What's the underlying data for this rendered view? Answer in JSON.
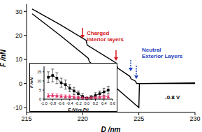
{
  "chart_data": [
    {
      "type": "line",
      "x_label": "D /nm",
      "y_label": "F /nN",
      "xlim": [
        215,
        230
      ],
      "xticks": [
        215,
        220,
        225,
        230
      ],
      "ylim": [
        -12,
        33
      ],
      "yticks": [
        -10,
        0,
        10,
        20,
        30
      ],
      "series": [
        {
          "color": "#000000",
          "x": [
            215.5,
            218,
            220.3,
            220.4,
            223,
            223.1,
            224.2,
            224.3,
            224.7,
            224.8,
            230
          ],
          "values": [
            31,
            24.5,
            18,
            16,
            8.5,
            6.5,
            3,
            2,
            1,
            0,
            0
          ]
        },
        {
          "color": "#000000",
          "x": [
            215.5,
            218,
            220.5,
            220.6,
            222.8,
            222.9,
            225,
            225.05,
            230
          ],
          "values": [
            29,
            20,
            10.5,
            9,
            1,
            -1.5,
            -10,
            0,
            0.3
          ]
        }
      ],
      "annotations": [
        {
          "text": "Charged",
          "color": "#d7191c"
        },
        {
          "text": "Interior layers",
          "color": "#d7191c"
        },
        {
          "text": "Neutral",
          "color": "#1f3fbf"
        },
        {
          "text": "Exterior Layers",
          "color": "#1f3fbf"
        },
        {
          "text": "-0.8 V",
          "color": "#000000"
        }
      ]
    },
    {
      "type": "line",
      "x_label": "E /V(vs.Pt)",
      "y_label": "F /nN",
      "xlim": [
        -1,
        0.6
      ],
      "xticks": [
        {
          "value": -1,
          "label": "-1.0"
        },
        {
          "value": -0.8,
          "label": "-0.8"
        },
        {
          "value": -0.6,
          "label": "-0.6"
        },
        {
          "value": -0.4,
          "label": "-0.4"
        },
        {
          "value": -0.2,
          "label": "-0.2"
        },
        {
          "value": 0,
          "label": "0.0"
        },
        {
          "value": 0.2,
          "label": "0.2"
        },
        {
          "value": 0.4,
          "label": "0.4"
        },
        {
          "value": 0.6,
          "label": "0.6"
        }
      ],
      "ylim": [
        0,
        18
      ],
      "yticks": [
        0,
        5,
        10,
        15
      ],
      "series": [
        {
          "color": "#000000",
          "marker": "square",
          "x": [
            -0.9,
            -0.8,
            -0.7,
            -0.6,
            -0.5,
            -0.4,
            -0.3,
            -0.2,
            -0.1,
            0,
            0.1,
            0.2,
            0.3,
            0.4,
            0.5
          ],
          "values": [
            12,
            13,
            11.5,
            9,
            8,
            6,
            4.5,
            3,
            1.5,
            0.5,
            1,
            2,
            3,
            4,
            5
          ],
          "errors": [
            3,
            3.5,
            3,
            2.5,
            2.5,
            2,
            2,
            1.5,
            1.5,
            0.5,
            1,
            1.5,
            1.5,
            2,
            2
          ]
        },
        {
          "color": "#e0306a",
          "marker": "triangle",
          "x": [
            -0.9,
            -0.8,
            -0.7,
            -0.6,
            -0.5,
            -0.4,
            -0.3,
            -0.2,
            -0.1,
            0,
            0.1,
            0.2,
            0.3,
            0.4,
            0.5
          ],
          "values": [
            2,
            2.2,
            2,
            1.8,
            1.5,
            1.5,
            1.2,
            1,
            1,
            0.8,
            1,
            1,
            1.2,
            1.3,
            1.5
          ],
          "errors": [
            1,
            1,
            1,
            0.8,
            0.8,
            0.8,
            0.7,
            0.7,
            0.6,
            0.6,
            0.6,
            0.7,
            0.7,
            0.8,
            0.8
          ]
        }
      ]
    }
  ]
}
